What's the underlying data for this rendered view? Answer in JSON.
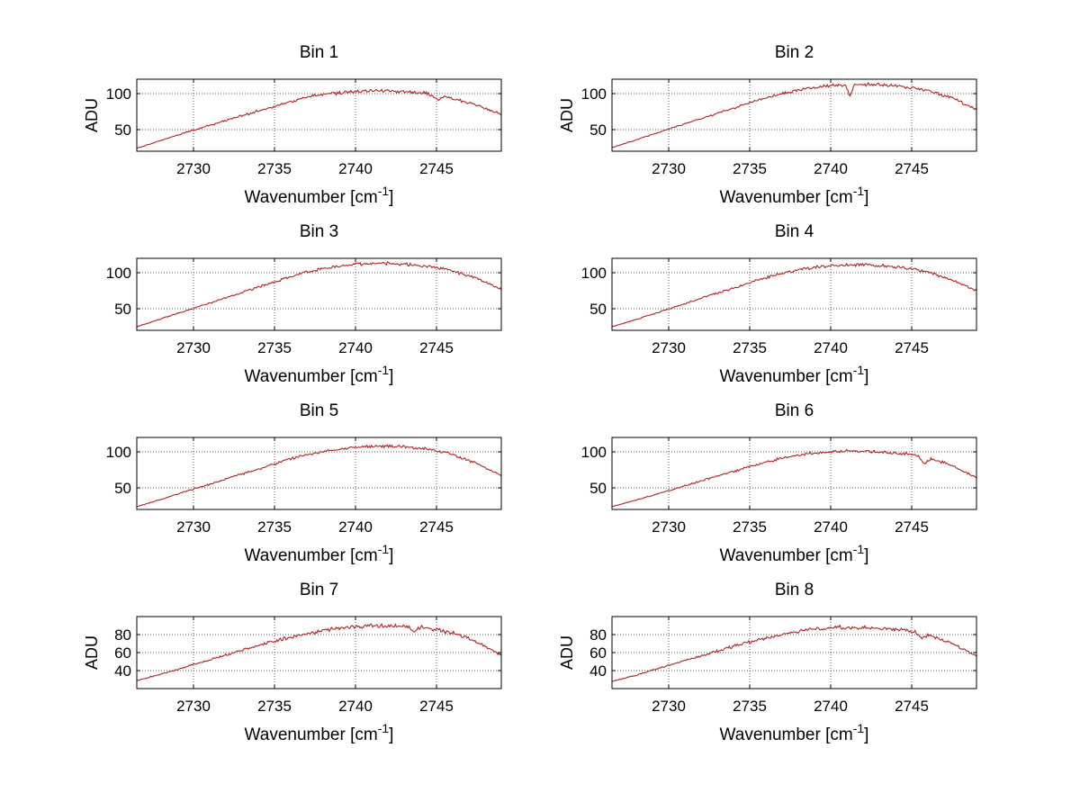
{
  "figure": {
    "background": "#ffffff",
    "line_color": "#b22222",
    "axis_color": "#000000",
    "grid_color": "#5a5a5a",
    "text_color": "#000000",
    "xlabel_main": "Wavenumber [cm",
    "xlabel_sup": "-1",
    "xlabel_close": "]"
  },
  "chart_data": [
    {
      "type": "line",
      "title": "Bin 1",
      "xlabel": "Wavenumber [cm-1]",
      "ylabel": "ADU",
      "xlim": [
        2726.5,
        2749
      ],
      "ylim": [
        20,
        120
      ],
      "xticks": [
        2730,
        2735,
        2740,
        2745
      ],
      "yticks": [
        50,
        100
      ],
      "x": [
        2726.5,
        2728,
        2729.5,
        2731,
        2732.5,
        2734,
        2735.5,
        2737,
        2738.5,
        2740,
        2741.5,
        2743,
        2744.5,
        2746,
        2747.5,
        2749
      ],
      "y": [
        24,
        35,
        46,
        56,
        66,
        76,
        86,
        95,
        100,
        103,
        104,
        103,
        100,
        93,
        84,
        71
      ],
      "spikes": [
        {
          "x": 2745.0,
          "depth": 6,
          "width": 0.5
        }
      ],
      "color": "#b22222",
      "grid": true,
      "legend": null
    },
    {
      "type": "line",
      "title": "Bin 2",
      "xlabel": "Wavenumber [cm-1]",
      "ylabel": "ADU",
      "xlim": [
        2726.5,
        2749
      ],
      "ylim": [
        20,
        120
      ],
      "xticks": [
        2730,
        2735,
        2740,
        2745
      ],
      "yticks": [
        50,
        100
      ],
      "x": [
        2726.5,
        2728,
        2729.5,
        2731,
        2732.5,
        2734,
        2735.5,
        2737,
        2738.5,
        2740,
        2741.5,
        2743,
        2744.5,
        2746,
        2747.5,
        2749
      ],
      "y": [
        25,
        36,
        47,
        58,
        69,
        80,
        91,
        100,
        107,
        111,
        113,
        112,
        110,
        104,
        94,
        78
      ],
      "spikes": [
        {
          "x": 2741.2,
          "depth": 16,
          "width": 0.3
        }
      ],
      "color": "#b22222",
      "grid": true,
      "legend": null
    },
    {
      "type": "line",
      "title": "Bin 3",
      "xlabel": "Wavenumber [cm-1]",
      "ylabel": "",
      "xlim": [
        2726.5,
        2749
      ],
      "ylim": [
        20,
        120
      ],
      "xticks": [
        2730,
        2735,
        2740,
        2745
      ],
      "yticks": [
        50,
        100
      ],
      "x": [
        2726.5,
        2728,
        2729.5,
        2731,
        2732.5,
        2734,
        2735.5,
        2737,
        2738.5,
        2740,
        2741.5,
        2743,
        2744.5,
        2746,
        2747.5,
        2749
      ],
      "y": [
        25,
        36,
        47,
        58,
        69,
        80,
        91,
        101,
        108,
        112,
        113,
        112,
        109,
        102,
        92,
        77
      ],
      "spikes": [],
      "color": "#b22222",
      "grid": true,
      "legend": null
    },
    {
      "type": "line",
      "title": "Bin 4",
      "xlabel": "Wavenumber [cm-1]",
      "ylabel": "",
      "xlim": [
        2726.5,
        2749
      ],
      "ylim": [
        20,
        120
      ],
      "xticks": [
        2730,
        2735,
        2740,
        2745
      ],
      "yticks": [
        50,
        100
      ],
      "x": [
        2726.5,
        2728,
        2729.5,
        2731,
        2732.5,
        2734,
        2735.5,
        2737,
        2738.5,
        2740,
        2741.5,
        2743,
        2744.5,
        2746,
        2747.5,
        2749
      ],
      "y": [
        25,
        35,
        46,
        57,
        68,
        79,
        90,
        99,
        106,
        110,
        111,
        110,
        107,
        101,
        90,
        75
      ],
      "spikes": [],
      "color": "#b22222",
      "grid": true,
      "legend": null
    },
    {
      "type": "line",
      "title": "Bin 5",
      "xlabel": "Wavenumber [cm-1]",
      "ylabel": "",
      "xlim": [
        2726.5,
        2749
      ],
      "ylim": [
        20,
        120
      ],
      "xticks": [
        2730,
        2735,
        2740,
        2745
      ],
      "yticks": [
        50,
        100
      ],
      "x": [
        2726.5,
        2728,
        2729.5,
        2731,
        2732.5,
        2734,
        2735.5,
        2737,
        2738.5,
        2740,
        2741.5,
        2743,
        2744.5,
        2746,
        2747.5,
        2749
      ],
      "y": [
        24,
        34,
        45,
        55,
        66,
        76,
        87,
        96,
        102,
        106,
        108,
        107,
        104,
        96,
        84,
        67
      ],
      "spikes": [],
      "color": "#b22222",
      "grid": true,
      "legend": null
    },
    {
      "type": "line",
      "title": "Bin 6",
      "xlabel": "Wavenumber [cm-1]",
      "ylabel": "",
      "xlim": [
        2726.5,
        2749
      ],
      "ylim": [
        20,
        120
      ],
      "xticks": [
        2730,
        2735,
        2740,
        2745
      ],
      "yticks": [
        50,
        100
      ],
      "x": [
        2726.5,
        2728,
        2729.5,
        2731,
        2732.5,
        2734,
        2735.5,
        2737,
        2738.5,
        2740,
        2741.5,
        2743,
        2744.5,
        2746,
        2747.5,
        2749
      ],
      "y": [
        24,
        33,
        43,
        53,
        63,
        73,
        83,
        91,
        97,
        100,
        101,
        100,
        98,
        92,
        81,
        64
      ],
      "spikes": [
        {
          "x": 2745.8,
          "depth": 11,
          "width": 0.4
        }
      ],
      "color": "#b22222",
      "grid": true,
      "legend": null
    },
    {
      "type": "line",
      "title": "Bin 7",
      "xlabel": "Wavenumber [cm-1]",
      "ylabel": "ADU",
      "xlim": [
        2726.5,
        2749
      ],
      "ylim": [
        20,
        100
      ],
      "xticks": [
        2730,
        2735,
        2740,
        2745
      ],
      "yticks": [
        40,
        60,
        80
      ],
      "x": [
        2726.5,
        2728,
        2729.5,
        2731,
        2732.5,
        2734,
        2735.5,
        2737,
        2738.5,
        2740,
        2741.5,
        2743,
        2744.5,
        2746,
        2747.5,
        2749
      ],
      "y": [
        29,
        36,
        44,
        52,
        60,
        68,
        75,
        81,
        86,
        89,
        90,
        89,
        87,
        82,
        72,
        57
      ],
      "spikes": [
        {
          "x": 2743.6,
          "depth": 6,
          "width": 0.3
        }
      ],
      "color": "#b22222",
      "grid": true,
      "legend": null
    },
    {
      "type": "line",
      "title": "Bin 8",
      "xlabel": "Wavenumber [cm-1]",
      "ylabel": "ADU",
      "xlim": [
        2726.5,
        2749
      ],
      "ylim": [
        20,
        100
      ],
      "xticks": [
        2730,
        2735,
        2740,
        2745
      ],
      "yticks": [
        40,
        60,
        80
      ],
      "x": [
        2726.5,
        2728,
        2729.5,
        2731,
        2732.5,
        2734,
        2735.5,
        2737,
        2738.5,
        2740,
        2741.5,
        2743,
        2744.5,
        2746,
        2747.5,
        2749
      ],
      "y": [
        28,
        35,
        43,
        51,
        59,
        67,
        74,
        80,
        85,
        88,
        88,
        87,
        85,
        80,
        70,
        56
      ],
      "spikes": [
        {
          "x": 2745.6,
          "depth": 6,
          "width": 0.4
        }
      ],
      "color": "#b22222",
      "grid": true,
      "legend": null
    }
  ]
}
